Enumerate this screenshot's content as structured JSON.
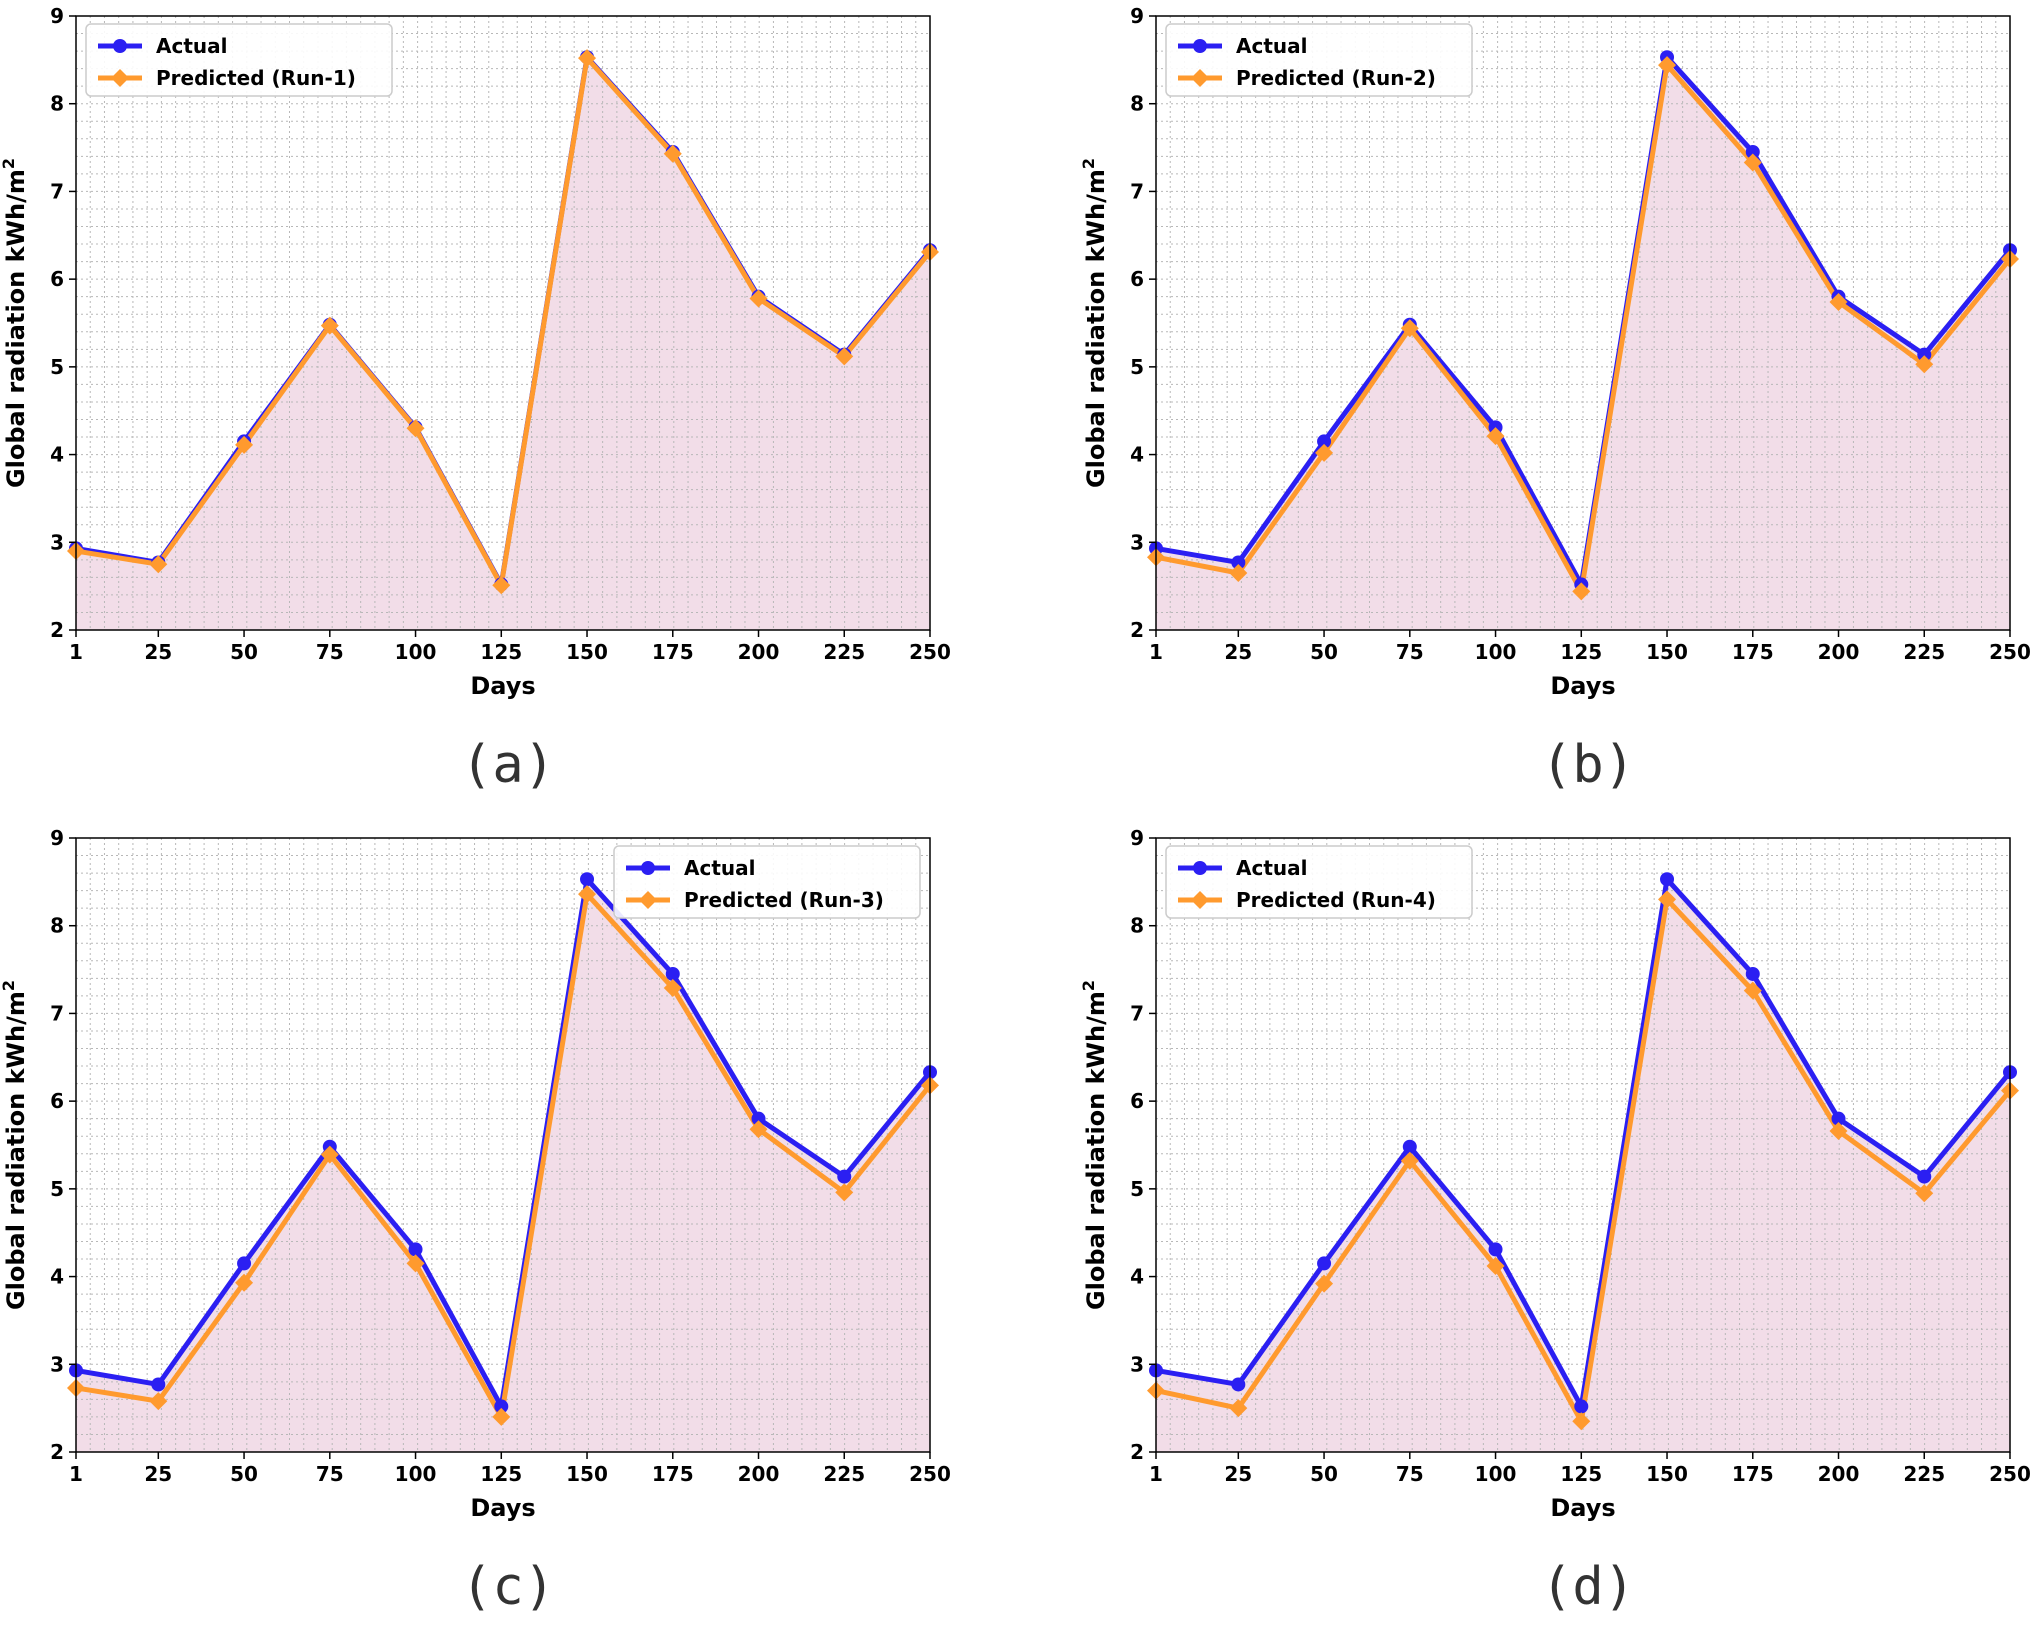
{
  "colors": {
    "actual": "#2b1ff2",
    "predicted": "#ff9a2e",
    "fill": "#f2dde8",
    "grid": "#b8b8b8"
  },
  "chart_data": [
    {
      "type": "line",
      "panel_label": "(a)",
      "xlabel": "Days",
      "ylabel": "Global radiation kWh/m",
      "ylabel_sup": "2",
      "x": [
        1,
        25,
        50,
        75,
        100,
        125,
        150,
        175,
        200,
        225,
        250
      ],
      "xticks": [
        "1",
        "25",
        "50",
        "75",
        "100",
        "125",
        "150",
        "175",
        "200",
        "225",
        "250"
      ],
      "ylim": [
        2,
        9
      ],
      "yticks": [
        "2",
        "3",
        "4",
        "5",
        "6",
        "7",
        "8",
        "9"
      ],
      "grid": true,
      "legend": "top-left",
      "series": [
        {
          "name": "Actual",
          "values": [
            2.93,
            2.77,
            4.15,
            5.48,
            4.31,
            2.52,
            8.53,
            7.45,
            5.8,
            5.14,
            6.33
          ]
        },
        {
          "name": "Predicted (Run-1)",
          "values": [
            2.9,
            2.75,
            4.11,
            5.47,
            4.3,
            2.51,
            8.52,
            7.43,
            5.78,
            5.12,
            6.31
          ]
        }
      ]
    },
    {
      "type": "line",
      "panel_label": "(b)",
      "xlabel": "Days",
      "ylabel": "Global radiation kWh/m",
      "ylabel_sup": "2",
      "x": [
        1,
        25,
        50,
        75,
        100,
        125,
        150,
        175,
        200,
        225,
        250
      ],
      "xticks": [
        "1",
        "25",
        "50",
        "75",
        "100",
        "125",
        "150",
        "175",
        "200",
        "225",
        "250"
      ],
      "ylim": [
        2,
        9
      ],
      "yticks": [
        "2",
        "3",
        "4",
        "5",
        "6",
        "7",
        "8",
        "9"
      ],
      "grid": true,
      "legend": "top-left",
      "series": [
        {
          "name": "Actual",
          "values": [
            2.93,
            2.77,
            4.15,
            5.48,
            4.31,
            2.52,
            8.53,
            7.45,
            5.8,
            5.14,
            6.33
          ]
        },
        {
          "name": "Predicted (Run-2)",
          "values": [
            2.83,
            2.65,
            4.02,
            5.44,
            4.21,
            2.44,
            8.44,
            7.33,
            5.74,
            5.03,
            6.23
          ]
        }
      ]
    },
    {
      "type": "line",
      "panel_label": "(c)",
      "xlabel": "Days",
      "ylabel": "Global radiation kWh/m",
      "ylabel_sup": "2",
      "x": [
        1,
        25,
        50,
        75,
        100,
        125,
        150,
        175,
        200,
        225,
        250
      ],
      "xticks": [
        "1",
        "25",
        "50",
        "75",
        "100",
        "125",
        "150",
        "175",
        "200",
        "225",
        "250"
      ],
      "ylim": [
        2,
        9
      ],
      "yticks": [
        "2",
        "3",
        "4",
        "5",
        "6",
        "7",
        "8",
        "9"
      ],
      "grid": true,
      "legend": "top-right",
      "series": [
        {
          "name": "Actual",
          "values": [
            2.93,
            2.77,
            4.15,
            5.48,
            4.31,
            2.52,
            8.53,
            7.45,
            5.8,
            5.14,
            6.33
          ]
        },
        {
          "name": "Predicted (Run-3)",
          "values": [
            2.73,
            2.58,
            3.93,
            5.39,
            4.15,
            2.4,
            8.36,
            7.29,
            5.68,
            4.96,
            6.18
          ]
        }
      ]
    },
    {
      "type": "line",
      "panel_label": "(d)",
      "xlabel": "Days",
      "ylabel": "Global radiation kWh/m",
      "ylabel_sup": "2",
      "x": [
        1,
        25,
        50,
        75,
        100,
        125,
        150,
        175,
        200,
        225,
        250
      ],
      "xticks": [
        "1",
        "25",
        "50",
        "75",
        "100",
        "125",
        "150",
        "175",
        "200",
        "225",
        "250"
      ],
      "ylim": [
        2,
        9
      ],
      "yticks": [
        "2",
        "3",
        "4",
        "5",
        "6",
        "7",
        "8",
        "9"
      ],
      "grid": true,
      "legend": "top-left",
      "series": [
        {
          "name": "Actual",
          "values": [
            2.93,
            2.77,
            4.15,
            5.48,
            4.31,
            2.52,
            8.53,
            7.45,
            5.8,
            5.14,
            6.33
          ]
        },
        {
          "name": "Predicted (Run-4)",
          "values": [
            2.7,
            2.5,
            3.92,
            5.32,
            4.12,
            2.35,
            8.3,
            7.26,
            5.66,
            4.95,
            6.12
          ]
        }
      ]
    }
  ]
}
